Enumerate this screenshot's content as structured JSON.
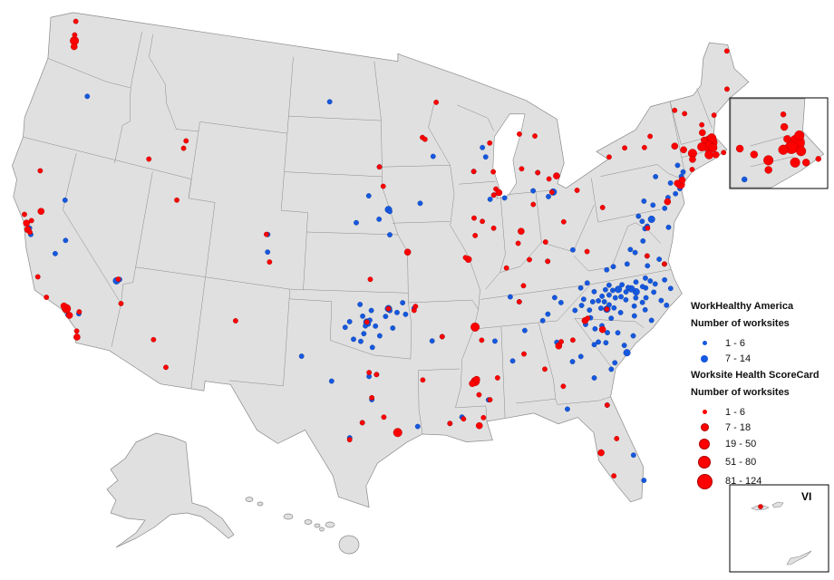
{
  "colors": {
    "land": "#e0e0e0",
    "border": "#8a8a8a",
    "wha": "#1558e0",
    "wsc": "#ff0000"
  },
  "legend": {
    "wha_title": "WorkHealthy America",
    "wha_subtitle": "Number of worksites",
    "wha_classes": [
      "1 - 6",
      "7 - 14"
    ],
    "wsc_title": "Worksite Health ScoreCard",
    "wsc_subtitle": "Number of worksites",
    "wsc_classes": [
      "1 - 6",
      "7 - 18",
      "19 - 50",
      "51 - 80",
      "81 - 124"
    ]
  },
  "insets": {
    "vi_label": "VI",
    "northeast": "New England inset"
  },
  "points_note_format": "[longitude, latitude, size class]",
  "wha_points": [
    [
      -78.6,
      35.8,
      2
    ],
    [
      -78.9,
      36,
      2
    ],
    [
      -79.1,
      36.1,
      1
    ],
    [
      -79.8,
      36.1,
      2
    ],
    [
      -80.2,
      36.1,
      1
    ],
    [
      -80.8,
      35.2,
      2
    ],
    [
      -80.6,
      35.4,
      1
    ],
    [
      -81.3,
      35.7,
      1
    ],
    [
      -82.5,
      35.6,
      1
    ],
    [
      -77.9,
      35.9,
      1
    ],
    [
      -77.4,
      35.6,
      1
    ],
    [
      -77.9,
      34.2,
      1
    ],
    [
      -78.9,
      35.1,
      1
    ],
    [
      -79.4,
      35.5,
      1
    ],
    [
      -80.1,
      35.7,
      1
    ],
    [
      -80.5,
      35.9,
      1
    ],
    [
      -81,
      35.9,
      1
    ],
    [
      -81.7,
      35.7,
      1
    ],
    [
      -82,
      35.3,
      1
    ],
    [
      -83,
      35.4,
      1
    ],
    [
      -77,
      35.1,
      1
    ],
    [
      -76.7,
      34.8,
      1
    ],
    [
      -78,
      35.4,
      1
    ],
    [
      -78.3,
      35.2,
      1
    ],
    [
      -78.5,
      36.3,
      1
    ],
    [
      -77.5,
      36.2,
      1
    ],
    [
      -76.5,
      36.1,
      1
    ],
    [
      -79.5,
      36.3,
      1
    ],
    [
      -80.4,
      36.4,
      1
    ],
    [
      -81.5,
      36.2,
      1
    ],
    [
      -79,
      34.6,
      1
    ],
    [
      -79.9,
      34.9,
      1
    ],
    [
      -80.3,
      35.2,
      1
    ],
    [
      -78.2,
      34.8,
      1
    ],
    [
      -77.8,
      36.4,
      1
    ],
    [
      -76.2,
      35.6,
      1
    ],
    [
      -79.3,
      35.9,
      1
    ],
    [
      -78.7,
      35.5,
      1
    ],
    [
      -80.9,
      35.6,
      1
    ],
    [
      -81.2,
      35.3,
      1
    ],
    [
      -79.7,
      35.7,
      1
    ],
    [
      -77.2,
      36,
      1
    ],
    [
      -78.1,
      36,
      1
    ],
    [
      -82.3,
      35.9,
      1
    ],
    [
      -80.7,
      36.2,
      1
    ],
    [
      -81,
      34,
      1
    ],
    [
      -81.3,
      34.4,
      1
    ],
    [
      -80.3,
      33.9,
      1
    ],
    [
      -79.9,
      32.8,
      2
    ],
    [
      -80,
      33.2,
      1
    ],
    [
      -81.7,
      33.6,
      1
    ],
    [
      -82.4,
      34.6,
      1
    ],
    [
      -82,
      34.9,
      1
    ],
    [
      -80.8,
      32.4,
      1
    ],
    [
      -79.3,
      33.6,
      1
    ],
    [
      -81.8,
      34.3,
      1
    ],
    [
      -80.6,
      34.7,
      1
    ],
    [
      -81.2,
      33.5,
      1
    ],
    [
      -77.4,
      37.5,
      1
    ],
    [
      -76.3,
      36.9,
      1
    ],
    [
      -79.9,
      37.3,
      1
    ],
    [
      -78.5,
      38,
      1
    ],
    [
      -77.5,
      38.3,
      1
    ],
    [
      -77.2,
      38.9,
      1
    ],
    [
      -76.6,
      37.2,
      1
    ],
    [
      -78.9,
      37.3,
      1
    ],
    [
      -80.4,
      37.2,
      1
    ],
    [
      -81.9,
      36.7,
      1
    ],
    [
      -77.5,
      37,
      1
    ],
    [
      -78.2,
      37.8,
      1
    ],
    [
      -76.6,
      39.3,
      2
    ],
    [
      -77,
      39,
      1
    ],
    [
      -75.5,
      39.7,
      1
    ],
    [
      -75.1,
      40.2,
      1
    ],
    [
      -74.5,
      40.3,
      1
    ],
    [
      -74.2,
      40.8,
      1
    ],
    [
      -74.7,
      40.9,
      1
    ],
    [
      -73.8,
      41.1,
      1
    ],
    [
      -73.9,
      41.7,
      1
    ],
    [
      -73.6,
      41.3,
      1
    ],
    [
      -74.1,
      40.5,
      1
    ],
    [
      -77.5,
      39.6,
      1
    ],
    [
      -76.3,
      40,
      1
    ],
    [
      -75.7,
      41.4,
      1
    ],
    [
      -76.9,
      40.3,
      1
    ],
    [
      -77.3,
      39.3,
      1
    ],
    [
      -75.5,
      38.7,
      1
    ],
    [
      -81.1,
      32.1,
      1
    ],
    [
      -82.3,
      31.8,
      1
    ],
    [
      -83.6,
      32.8,
      1
    ],
    [
      -84.5,
      33.9,
      1
    ],
    [
      -82,
      33.5,
      1
    ],
    [
      -83,
      33,
      1
    ],
    [
      -85.3,
      35.1,
      1
    ],
    [
      -83.9,
      35.9,
      1
    ],
    [
      -86.8,
      36.2,
      1
    ],
    [
      -82.4,
      36.5,
      1
    ],
    [
      -84.3,
      36.2,
      1
    ],
    [
      -87.4,
      36.5,
      1
    ],
    [
      -84.9,
      35.4,
      1
    ],
    [
      -84.5,
      38.1,
      1
    ],
    [
      -82.6,
      38.5,
      1
    ],
    [
      -97.5,
      35.5,
      2
    ],
    [
      -97.4,
      35.4,
      1
    ],
    [
      -97.6,
      35.3,
      1
    ],
    [
      -97.3,
      35.6,
      1
    ],
    [
      -97.8,
      35.8,
      1
    ],
    [
      -96,
      36.2,
      2
    ],
    [
      -95.9,
      36.1,
      1
    ],
    [
      -95.4,
      36,
      1
    ],
    [
      -96.2,
      35.8,
      1
    ],
    [
      -98.4,
      34.6,
      1
    ],
    [
      -97.1,
      34.2,
      1
    ],
    [
      -96.6,
      34.8,
      1
    ],
    [
      -99,
      35.2,
      1
    ],
    [
      -98,
      36.4,
      1
    ],
    [
      -97.9,
      34.5,
      1
    ],
    [
      -95.7,
      35.2,
      1
    ],
    [
      -96.9,
      35.3,
      1
    ],
    [
      -98.7,
      35.5,
      1
    ],
    [
      -94.8,
      35.9,
      1
    ],
    [
      -95,
      36.5,
      1
    ],
    [
      -97.2,
      36.1,
      1
    ],
    [
      -97.7,
      34.9,
      1
    ],
    [
      -92.3,
      34.7,
      1
    ],
    [
      -94.2,
      36.2,
      1
    ],
    [
      -93,
      34.5,
      1
    ],
    [
      -97.3,
      32.7,
      1
    ],
    [
      -96.8,
      32.8,
      1
    ],
    [
      -97.7,
      30.3,
      1
    ],
    [
      -98.5,
      29.5,
      1
    ],
    [
      -99.8,
      32.4,
      1
    ],
    [
      -97.1,
      31.5,
      1
    ],
    [
      -95.4,
      29.8,
      1
    ],
    [
      -101.9,
      33.6,
      1
    ],
    [
      -94.1,
      30.1,
      1
    ],
    [
      -90.2,
      32.3,
      1
    ],
    [
      -88.7,
      34.3,
      1
    ],
    [
      -89.4,
      31.3,
      1
    ],
    [
      -91.2,
      30.5,
      1
    ],
    [
      -92,
      30.2,
      1
    ],
    [
      -81.7,
      30.3,
      1
    ],
    [
      -80.1,
      26.1,
      1
    ],
    [
      -80.5,
      27.5,
      1
    ],
    [
      -84.3,
      30.4,
      1
    ],
    [
      -86.6,
      34.7,
      1
    ],
    [
      -87.6,
      33.2,
      1
    ],
    [
      -96.7,
      40.8,
      1
    ],
    [
      -96,
      41.3,
      2
    ],
    [
      -95.9,
      41.2,
      1
    ],
    [
      -97.5,
      42,
      1
    ],
    [
      -98.4,
      40.6,
      1
    ],
    [
      -96.7,
      43.5,
      1
    ],
    [
      -100.8,
      46.8,
      1
    ],
    [
      -93.6,
      41.6,
      1
    ],
    [
      -95.9,
      40,
      1
    ],
    [
      -94.6,
      39.1,
      1
    ],
    [
      -86.2,
      39.8,
      1
    ],
    [
      -87.6,
      41.9,
      1
    ],
    [
      -88,
      41.8,
      1
    ],
    [
      -88.3,
      41.6,
      1
    ],
    [
      -83.5,
      41.6,
      2
    ],
    [
      -83.9,
      41.4,
      1
    ],
    [
      -84.5,
      42.7,
      1
    ],
    [
      -85,
      41.8,
      1
    ],
    [
      -88.6,
      44.3,
      1
    ],
    [
      -88.4,
      43.8,
      1
    ],
    [
      -92.5,
      44,
      1
    ],
    [
      -89.4,
      43.1,
      1
    ],
    [
      -87.2,
      41.6,
      1
    ],
    [
      -120,
      39.5,
      1
    ],
    [
      -119.8,
      36.7,
      1
    ],
    [
      -118.2,
      34,
      1
    ],
    [
      -118,
      33.8,
      1
    ],
    [
      -117.3,
      34,
      1
    ],
    [
      -117.1,
      32.8,
      1
    ],
    [
      -115.2,
      36.1,
      2
    ],
    [
      -115,
      36.2,
      1
    ],
    [
      -120.2,
      45,
      1
    ],
    [
      -119.3,
      37.5,
      1
    ],
    [
      -104.8,
      38.8,
      1
    ],
    [
      -104.9,
      39.7,
      1
    ],
    [
      -121.8,
      37.3,
      1
    ],
    [
      -122,
      37.6,
      1
    ]
  ],
  "wsc_points": [
    [
      -122.3,
      47.6,
      3
    ],
    [
      -122.2,
      47.3,
      2
    ],
    [
      -122.4,
      47.9,
      1
    ],
    [
      -122.6,
      48.6,
      1
    ],
    [
      -122.3,
      40.6,
      1
    ],
    [
      -122.3,
      37.8,
      2
    ],
    [
      -122.1,
      37.5,
      2
    ],
    [
      -121.9,
      37.4,
      1
    ],
    [
      -122.6,
      38.2,
      1
    ],
    [
      -121.5,
      38.6,
      2
    ],
    [
      -122,
      38,
      1
    ],
    [
      -118.2,
      34.1,
      3
    ],
    [
      -117.9,
      33.8,
      2
    ],
    [
      -118.4,
      34.2,
      2
    ],
    [
      -117.3,
      34.1,
      1
    ],
    [
      -119.7,
      34.4,
      1
    ],
    [
      -120.6,
      35.3,
      1
    ],
    [
      -117.1,
      32.8,
      2
    ],
    [
      -117.2,
      33.1,
      1
    ],
    [
      -112,
      43.5,
      1
    ],
    [
      -111.9,
      43.9,
      1
    ],
    [
      -114.5,
      42.6,
      1
    ],
    [
      -111.9,
      40.8,
      1
    ],
    [
      -115.1,
      36.2,
      1
    ],
    [
      -114.6,
      35,
      1
    ],
    [
      -112,
      33.5,
      1
    ],
    [
      -110.9,
      32.2,
      1
    ],
    [
      -106.6,
      35.1,
      1
    ],
    [
      -105,
      39.7,
      1
    ],
    [
      -104.6,
      38.3,
      1
    ],
    [
      -96.7,
      43.5,
      1
    ],
    [
      -96.4,
      42.5,
      1
    ],
    [
      -94.6,
      39.1,
      2
    ],
    [
      -90.2,
      38.6,
      2
    ],
    [
      -90.4,
      38.7,
      1
    ],
    [
      -97.3,
      37.7,
      1
    ],
    [
      -96,
      36.2,
      1
    ],
    [
      -92.1,
      46.8,
      1
    ],
    [
      -93.3,
      45,
      1
    ],
    [
      -93.1,
      44.9,
      1
    ],
    [
      -87.9,
      43,
      1
    ],
    [
      -89.4,
      43.1,
      1
    ],
    [
      -88,
      44.5,
      1
    ],
    [
      -87.8,
      42.1,
      1
    ],
    [
      -87.6,
      41.9,
      2
    ],
    [
      -88,
      41.8,
      1
    ],
    [
      -89.6,
      40.7,
      1
    ],
    [
      -89,
      40.5,
      1
    ],
    [
      -88.2,
      40.1,
      1
    ],
    [
      -89.6,
      39.8,
      1
    ],
    [
      -83.1,
      42.4,
      2
    ],
    [
      -83.7,
      42.3,
      1
    ],
    [
      -84.5,
      42.7,
      1
    ],
    [
      -85.7,
      43,
      1
    ],
    [
      -84.4,
      44.6,
      1
    ],
    [
      -85.6,
      44.8,
      1
    ],
    [
      -86.2,
      39.8,
      2
    ],
    [
      -86.5,
      39.2,
      1
    ],
    [
      -87.5,
      38,
      1
    ],
    [
      -85.1,
      41.1,
      1
    ],
    [
      -84.5,
      39.1,
      1
    ],
    [
      -83,
      40,
      1
    ],
    [
      -83.6,
      41.6,
      1
    ],
    [
      -81.7,
      41.5,
      1
    ],
    [
      -85.8,
      38.3,
      1
    ],
    [
      -84.5,
      38.1,
      1
    ],
    [
      -86.4,
      37,
      1
    ],
    [
      -90,
      35.1,
      3
    ],
    [
      -86.8,
      36.2,
      1
    ],
    [
      -90.2,
      32.3,
      3
    ],
    [
      -90.1,
      32.4,
      2
    ],
    [
      -90.4,
      32.2,
      2
    ],
    [
      -90,
      31.6,
      1
    ],
    [
      -89.3,
      31.3,
      1
    ],
    [
      -88.7,
      32.4,
      1
    ],
    [
      -89.6,
      34.4,
      1
    ],
    [
      -90.1,
      30,
      2
    ],
    [
      -89.8,
      30.4,
      1
    ],
    [
      -91.1,
      30.4,
      1
    ],
    [
      -92,
      30.2,
      1
    ],
    [
      -93.7,
      32.5,
      1
    ],
    [
      -86.8,
      33.5,
      1
    ],
    [
      -85.5,
      32.6,
      1
    ],
    [
      -84.4,
      33.7,
      2
    ],
    [
      -84.2,
      33.9,
      1
    ],
    [
      -83.4,
      33.9,
      1
    ],
    [
      -84.4,
      31.6,
      1
    ],
    [
      -81.7,
      30.3,
      1
    ],
    [
      -82.5,
      27.9,
      2
    ],
    [
      -81.9,
      26.6,
      1
    ],
    [
      -81.4,
      28.5,
      1
    ],
    [
      -96.8,
      32.8,
      1
    ],
    [
      -97.3,
      32.9,
      1
    ],
    [
      -95.4,
      29.8,
      3
    ],
    [
      -97.7,
      30.3,
      1
    ],
    [
      -98.5,
      29.4,
      1
    ],
    [
      -97.1,
      31.6,
      1
    ],
    [
      -96.3,
      30.6,
      1
    ],
    [
      -97.5,
      35.5,
      1
    ],
    [
      -92.3,
      34.7,
      1
    ],
    [
      -94.2,
      36.1,
      1
    ],
    [
      -94.1,
      36.3,
      1
    ],
    [
      -74,
      40.7,
      3
    ],
    [
      -73.8,
      40.9,
      2
    ],
    [
      -74.2,
      40.8,
      2
    ],
    [
      -75.2,
      40,
      2
    ],
    [
      -80,
      40.4,
      1
    ],
    [
      -78.9,
      42.9,
      1
    ],
    [
      -77.6,
      43.2,
      1
    ],
    [
      -76.1,
      43,
      1
    ],
    [
      -73.8,
      42.7,
      2
    ],
    [
      -75.5,
      43.5,
      1
    ],
    [
      -71.1,
      42.4,
      5
    ],
    [
      -71.4,
      42.3,
      4
    ],
    [
      -71.8,
      42.3,
      3
    ],
    [
      -70.9,
      42.6,
      3
    ],
    [
      -71,
      42.1,
      3
    ],
    [
      -71.5,
      42.6,
      2
    ],
    [
      -70.9,
      41.7,
      2
    ],
    [
      -72.6,
      42.1,
      3
    ],
    [
      -73.2,
      42.4,
      2
    ],
    [
      -71.4,
      41.8,
      3
    ],
    [
      -72.7,
      41.8,
      2
    ],
    [
      -72.9,
      41.3,
      1
    ],
    [
      -70.3,
      41.7,
      1
    ],
    [
      -71.5,
      43,
      2
    ],
    [
      -71.4,
      43.4,
      1
    ],
    [
      -70.3,
      43.7,
      1
    ],
    [
      -68.8,
      44.8,
      1
    ],
    [
      -68,
      46.7,
      1
    ],
    [
      -73.2,
      44.5,
      1
    ],
    [
      -72.5,
      44.2,
      1
    ],
    [
      -77,
      38.9,
      1
    ],
    [
      -77.4,
      37.5,
      1
    ],
    [
      -76.3,
      36.9,
      1
    ],
    [
      -81.6,
      38.3,
      1
    ],
    [
      -80.8,
      35.2,
      1
    ],
    [
      -81.3,
      34.2,
      2
    ],
    [
      -82.4,
      34.8,
      2
    ],
    [
      -82.2,
      34.9,
      1
    ]
  ]
}
